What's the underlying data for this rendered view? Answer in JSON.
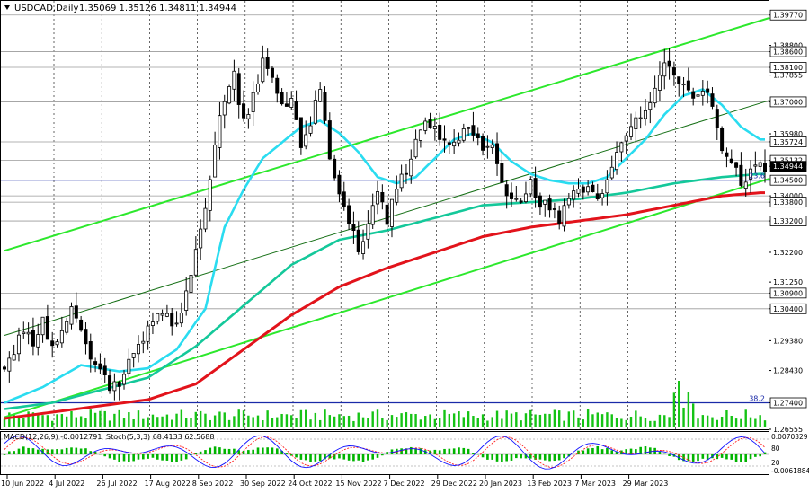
{
  "header": {
    "symbol": "USDCAD,Daily",
    "ohlc": "1.35069 1.35126 1.34811 1.34944"
  },
  "chart_data": {
    "type": "candlestick",
    "title": "",
    "ylim": [
      1.26555,
      1.40221
    ],
    "price_axis_ticks": [
      {
        "label": "1.39770",
        "value": 1.3977,
        "boxed": true
      },
      {
        "label": "1.38800",
        "value": 1.388,
        "boxed": false
      },
      {
        "label": "1.38600",
        "value": 1.386,
        "boxed": true
      },
      {
        "label": "1.38100",
        "value": 1.381,
        "boxed": true
      },
      {
        "label": "1.37855",
        "value": 1.37855,
        "boxed": false
      },
      {
        "label": "1.37000",
        "value": 1.37,
        "boxed": true
      },
      {
        "label": "1.35980",
        "value": 1.3598,
        "boxed": false
      },
      {
        "label": "1.35724",
        "value": 1.35724,
        "boxed": true
      },
      {
        "label": "1.35132",
        "value": 1.35132,
        "boxed": true
      },
      {
        "label": "1.34944",
        "value": 1.34944,
        "boxed": true,
        "current": true
      },
      {
        "label": "1.34500",
        "value": 1.345,
        "boxed": true
      },
      {
        "label": "1.34000",
        "value": 1.34,
        "boxed": false
      },
      {
        "label": "1.33800",
        "value": 1.338,
        "boxed": true
      },
      {
        "label": "1.33200",
        "value": 1.332,
        "boxed": true
      },
      {
        "label": "1.32200",
        "value": 1.322,
        "boxed": false
      },
      {
        "label": "1.31250",
        "value": 1.3125,
        "boxed": false
      },
      {
        "label": "1.30900",
        "value": 1.309,
        "boxed": true
      },
      {
        "label": "1.30400",
        "value": 1.304,
        "boxed": true
      },
      {
        "label": "1.29380",
        "value": 1.2938,
        "boxed": false
      },
      {
        "label": "1.28430",
        "value": 1.2843,
        "boxed": false
      },
      {
        "label": "1.27400",
        "value": 1.274,
        "boxed": true
      },
      {
        "label": "1.26555",
        "value": 1.26555,
        "boxed": false
      }
    ],
    "horizontal_levels": [
      1.3977,
      1.386,
      1.381,
      1.37,
      1.35724,
      1.35132,
      1.34,
      1.338,
      1.332,
      1.309,
      1.304,
      1.274
    ],
    "fib_levels": [
      {
        "value": 1.345,
        "label": "23.6"
      },
      {
        "value": 1.274,
        "label": "38.2"
      }
    ],
    "x_labels": [
      "10 Jun 2022",
      "4 Jul 2022",
      "26 Jul 2022",
      "17 Aug 2022",
      "8 Sep 2022",
      "30 Sep 2022",
      "24 Oct 2022",
      "15 Nov 2022",
      "7 Dec 2022",
      "29 Dec 2022",
      "20 Jan 2023",
      "13 Feb 2023",
      "7 Mar 2023",
      "29 Mar 2023"
    ],
    "price_path": [
      [
        0,
        1.286
      ],
      [
        2,
        1.29
      ],
      [
        4,
        1.298
      ],
      [
        6,
        1.294
      ],
      [
        8,
        1.3
      ],
      [
        10,
        1.292
      ],
      [
        12,
        1.297
      ],
      [
        14,
        1.303
      ],
      [
        16,
        1.296
      ],
      [
        18,
        1.289
      ],
      [
        20,
        1.283
      ],
      [
        22,
        1.279
      ],
      [
        24,
        1.281
      ],
      [
        26,
        1.287
      ],
      [
        28,
        1.292
      ],
      [
        30,
        1.298
      ],
      [
        32,
        1.304
      ],
      [
        34,
        1.301
      ],
      [
        36,
        1.299
      ],
      [
        38,
        1.31
      ],
      [
        40,
        1.322
      ],
      [
        42,
        1.336
      ],
      [
        44,
        1.356
      ],
      [
        46,
        1.372
      ],
      [
        48,
        1.378
      ],
      [
        50,
        1.363
      ],
      [
        52,
        1.372
      ],
      [
        54,
        1.383
      ],
      [
        56,
        1.376
      ],
      [
        58,
        1.369
      ],
      [
        60,
        1.37
      ],
      [
        62,
        1.356
      ],
      [
        64,
        1.364
      ],
      [
        66,
        1.374
      ],
      [
        68,
        1.353
      ],
      [
        70,
        1.341
      ],
      [
        72,
        1.331
      ],
      [
        74,
        1.324
      ],
      [
        76,
        1.33
      ],
      [
        78,
        1.342
      ],
      [
        80,
        1.332
      ],
      [
        82,
        1.342
      ],
      [
        84,
        1.348
      ],
      [
        86,
        1.359
      ],
      [
        88,
        1.364
      ],
      [
        90,
        1.362
      ],
      [
        92,
        1.357
      ],
      [
        94,
        1.356
      ],
      [
        96,
        1.362
      ],
      [
        98,
        1.359
      ],
      [
        100,
        1.354
      ],
      [
        102,
        1.355
      ],
      [
        104,
        1.345
      ],
      [
        106,
        1.338
      ],
      [
        108,
        1.338
      ],
      [
        110,
        1.344
      ],
      [
        112,
        1.338
      ],
      [
        114,
        1.336
      ],
      [
        116,
        1.332
      ],
      [
        118,
        1.339
      ],
      [
        120,
        1.342
      ],
      [
        122,
        1.343
      ],
      [
        124,
        1.338
      ],
      [
        126,
        1.344
      ],
      [
        128,
        1.352
      ],
      [
        130,
        1.36
      ],
      [
        132,
        1.363
      ],
      [
        134,
        1.366
      ],
      [
        136,
        1.376
      ],
      [
        138,
        1.382
      ],
      [
        140,
        1.379
      ],
      [
        142,
        1.374
      ],
      [
        144,
        1.371
      ],
      [
        146,
        1.374
      ],
      [
        148,
        1.368
      ],
      [
        150,
        1.356
      ],
      [
        152,
        1.352
      ],
      [
        154,
        1.344
      ],
      [
        156,
        1.348
      ],
      [
        158,
        1.351
      ],
      [
        159,
        1.34944
      ]
    ],
    "series": [
      {
        "type": "ma",
        "color": "#2adcf0",
        "values": [
          [
            0,
            1.274
          ],
          [
            8,
            1.279
          ],
          [
            16,
            1.286
          ],
          [
            20,
            1.285
          ],
          [
            24,
            1.284
          ],
          [
            30,
            1.285
          ],
          [
            36,
            1.291
          ],
          [
            42,
            1.304
          ],
          [
            46,
            1.33
          ],
          [
            50,
            1.342
          ],
          [
            54,
            1.352
          ],
          [
            58,
            1.357
          ],
          [
            62,
            1.362
          ],
          [
            66,
            1.364
          ],
          [
            70,
            1.36
          ],
          [
            74,
            1.354
          ],
          [
            78,
            1.346
          ],
          [
            82,
            1.344
          ],
          [
            86,
            1.346
          ],
          [
            90,
            1.352
          ],
          [
            94,
            1.358
          ],
          [
            98,
            1.36
          ],
          [
            102,
            1.357
          ],
          [
            106,
            1.351
          ],
          [
            110,
            1.347
          ],
          [
            114,
            1.345
          ],
          [
            118,
            1.344
          ],
          [
            122,
            1.344
          ],
          [
            126,
            1.346
          ],
          [
            130,
            1.352
          ],
          [
            134,
            1.358
          ],
          [
            138,
            1.366
          ],
          [
            142,
            1.372
          ],
          [
            146,
            1.374
          ],
          [
            150,
            1.369
          ],
          [
            154,
            1.362
          ],
          [
            158,
            1.358
          ]
        ]
      },
      {
        "type": "ma",
        "color": "#14c89a",
        "values": [
          [
            0,
            1.272
          ],
          [
            10,
            1.274
          ],
          [
            20,
            1.278
          ],
          [
            30,
            1.282
          ],
          [
            40,
            1.292
          ],
          [
            50,
            1.305
          ],
          [
            60,
            1.318
          ],
          [
            70,
            1.326
          ],
          [
            80,
            1.329
          ],
          [
            90,
            1.333
          ],
          [
            100,
            1.337
          ],
          [
            110,
            1.338
          ],
          [
            120,
            1.339
          ],
          [
            130,
            1.341
          ],
          [
            140,
            1.344
          ],
          [
            150,
            1.346
          ],
          [
            158,
            1.347
          ]
        ]
      },
      {
        "type": "ma",
        "color": "#e2131b",
        "values": [
          [
            0,
            1.269
          ],
          [
            10,
            1.271
          ],
          [
            20,
            1.273
          ],
          [
            30,
            1.275
          ],
          [
            40,
            1.28
          ],
          [
            50,
            1.291
          ],
          [
            60,
            1.302
          ],
          [
            70,
            1.311
          ],
          [
            80,
            1.317
          ],
          [
            90,
            1.322
          ],
          [
            100,
            1.327
          ],
          [
            110,
            1.33
          ],
          [
            120,
            1.332
          ],
          [
            130,
            1.334
          ],
          [
            140,
            1.337
          ],
          [
            150,
            1.34
          ],
          [
            158,
            1.341
          ]
        ]
      }
    ],
    "trend_lines": [
      {
        "color": "#2ce82c",
        "from": [
          0,
          1.3225
        ],
        "to": [
          160,
          1.3968
        ]
      },
      {
        "color": "#2ce82c",
        "from": [
          0,
          1.2694
        ],
        "to": [
          160,
          1.3455
        ]
      },
      {
        "color": "#156f15",
        "from": [
          0,
          1.2955
        ],
        "to": [
          160,
          1.3705
        ]
      }
    ],
    "volume_axis_labels": [],
    "oscillator": {
      "macd_label": "MACD(12,26,9) -0.0012791",
      "stoch_label": "Stoch(5,3,3) 68.4133 62.5688",
      "axis_labels": [
        {
          "label": "0.0070329",
          "position": "top"
        },
        {
          "label": "80",
          "position": "upper"
        },
        {
          "label": "20",
          "position": "lower"
        },
        {
          "label": "-0.0061884",
          "position": "bottom"
        }
      ],
      "histogram_color": "#00b400",
      "stoch_main_color": "#1010ff",
      "stoch_signal_color": "#ff2020"
    }
  }
}
